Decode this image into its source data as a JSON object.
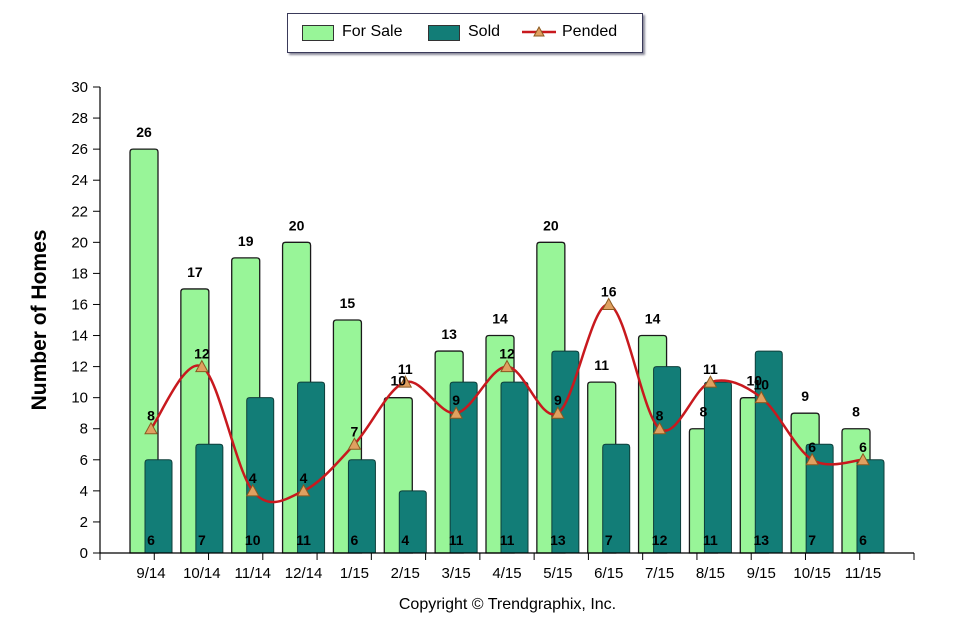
{
  "chart_data": {
    "type": "bar",
    "categories": [
      "9/14",
      "10/14",
      "11/14",
      "12/14",
      "1/15",
      "2/15",
      "3/15",
      "4/15",
      "5/15",
      "6/15",
      "7/15",
      "8/15",
      "9/15",
      "10/15",
      "11/15"
    ],
    "series": [
      {
        "name": "For Sale",
        "type": "bar",
        "color": "#98f598",
        "values": [
          26,
          17,
          19,
          20,
          15,
          10,
          13,
          14,
          20,
          11,
          14,
          8,
          10,
          9,
          8
        ]
      },
      {
        "name": "Sold",
        "type": "bar",
        "color": "#127d77",
        "values": [
          6,
          7,
          10,
          11,
          6,
          4,
          11,
          11,
          13,
          7,
          12,
          11,
          13,
          7,
          6
        ]
      },
      {
        "name": "Pended",
        "type": "line",
        "color": "#c8191e",
        "marker_color": "#e0a060",
        "values": [
          8,
          12,
          4,
          4,
          7,
          11,
          9,
          12,
          9,
          16,
          8,
          11,
          10,
          6,
          6
        ]
      }
    ],
    "ylabel": "Number of Homes",
    "xlabel": "",
    "ylim": [
      0,
      30
    ],
    "yticks": [
      "0",
      "2",
      "4",
      "6",
      "8",
      "10",
      "12",
      "14",
      "16",
      "18",
      "20",
      "22",
      "24",
      "26",
      "28",
      "30"
    ],
    "legend_position": "top-center",
    "grid": false
  },
  "copyright": "Copyright © Trendgraphix, Inc."
}
